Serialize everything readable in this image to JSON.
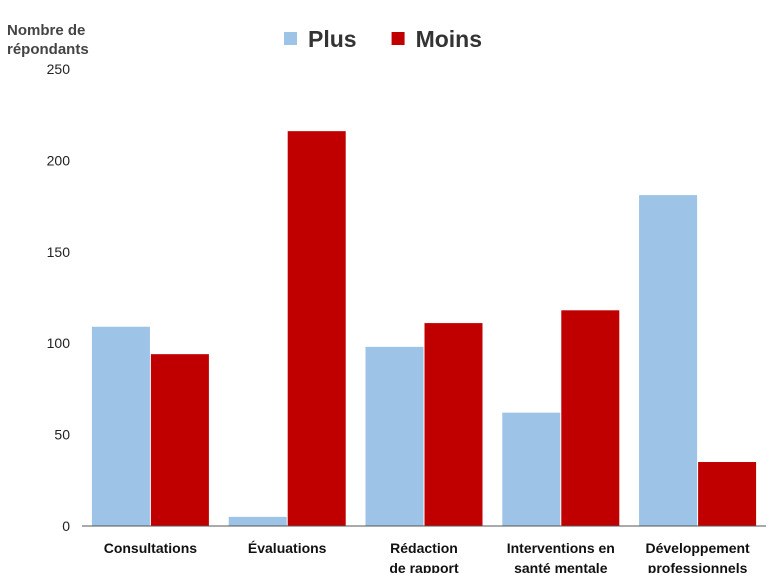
{
  "chart_data": {
    "type": "bar",
    "title": "",
    "ylabel_lines": [
      "Nombre de",
      "répondants"
    ],
    "xlabel": "",
    "ylim": [
      0,
      250
    ],
    "yticks": [
      0,
      50,
      100,
      150,
      200,
      250
    ],
    "grid": false,
    "legend_position": "top-center",
    "categories": [
      [
        "Consultations"
      ],
      [
        "Évaluations"
      ],
      [
        "Rédaction",
        "de rapport"
      ],
      [
        "Interventions en",
        "santé mentale"
      ],
      [
        "Développement",
        "professionnels"
      ]
    ],
    "series": [
      {
        "name": "Plus",
        "color": "#9dc3e6",
        "values": [
          109,
          5,
          98,
          62,
          181
        ]
      },
      {
        "name": "Moins",
        "color": "#c00000",
        "values": [
          94,
          216,
          111,
          118,
          35
        ]
      }
    ]
  }
}
